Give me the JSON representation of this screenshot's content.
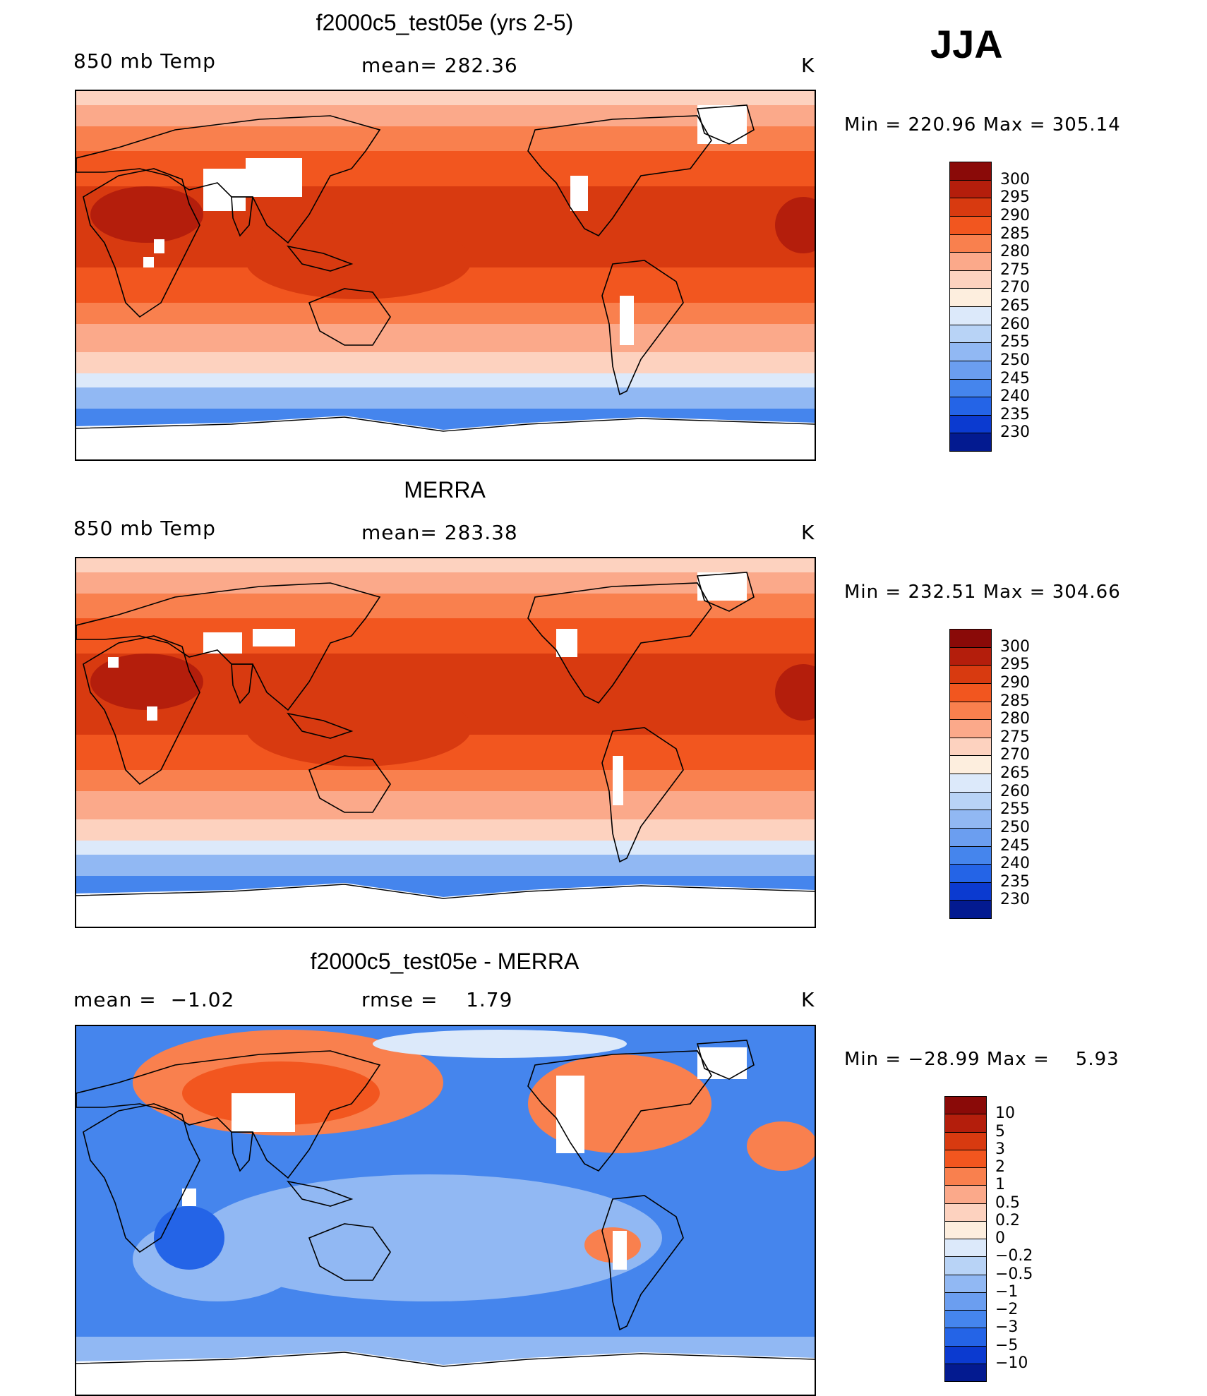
{
  "season": "JJA",
  "units": "K",
  "panels": [
    {
      "title": "f2000c5_test05e (yrs 2-5)",
      "left_label": "850 mb Temp",
      "mid_label": "mean= 282.36",
      "units": "K",
      "minmax": "Min = 220.96 Max = 305.14",
      "colorbar_labels": [
        "300",
        "295",
        "290",
        "285",
        "280",
        "275",
        "270",
        "265",
        "260",
        "255",
        "250",
        "245",
        "240",
        "235",
        "230"
      ],
      "colorbar_colors": [
        "#8a0a08",
        "#b41e0c",
        "#d83a10",
        "#f2561f",
        "#f9804e",
        "#fba98a",
        "#fdd2bf",
        "#fdeede",
        "#dce9fa",
        "#b8d3f6",
        "#91b8f3",
        "#6b9ef0",
        "#4585ed",
        "#2464e7",
        "#0b3ad0",
        "#031a90"
      ],
      "colorbar_header": "",
      "map_kind": "absolute",
      "map_colors": {
        "hot": "#b41e0c",
        "warm": "#d83a10",
        "mid": "#f2561f",
        "mild": "#f9804e",
        "cool": "#fba98a",
        "cold": "#fdd2bf",
        "polar1": "#dce9fa",
        "polar2": "#91b8f3",
        "polar3": "#4585ed",
        "mask": "#ffffff"
      }
    },
    {
      "title": "MERRA",
      "left_label": "850 mb Temp",
      "mid_label": "mean= 283.38",
      "units": "K",
      "minmax": "Min = 232.51 Max = 304.66",
      "colorbar_labels": [
        "300",
        "295",
        "290",
        "285",
        "280",
        "275",
        "270",
        "265",
        "260",
        "255",
        "250",
        "245",
        "240",
        "235",
        "230"
      ],
      "colorbar_colors": [
        "#8a0a08",
        "#b41e0c",
        "#d83a10",
        "#f2561f",
        "#f9804e",
        "#fba98a",
        "#fdd2bf",
        "#fdeede",
        "#dce9fa",
        "#b8d3f6",
        "#91b8f3",
        "#6b9ef0",
        "#4585ed",
        "#2464e7",
        "#0b3ad0",
        "#031a90"
      ],
      "colorbar_header": "",
      "map_kind": "absolute",
      "map_colors": {
        "hot": "#b41e0c",
        "warm": "#d83a10",
        "mid": "#f2561f",
        "mild": "#f9804e",
        "cool": "#fba98a",
        "cold": "#fdd2bf",
        "polar1": "#dce9fa",
        "polar2": "#91b8f3",
        "polar3": "#4585ed",
        "mask": "#ffffff"
      }
    },
    {
      "title": "f2000c5_test05e - MERRA",
      "left_label": "mean =  −1.02",
      "mid_label": "rmse =    1.79",
      "units": "K",
      "minmax": "Min = −28.99 Max =    5.93",
      "colorbar_labels": [
        "10",
        "5",
        "3",
        "2",
        "1",
        "0.5",
        "0.2",
        "0",
        "−0.2",
        "−0.5",
        "−1",
        "−2",
        "−3",
        "−5",
        "−10"
      ],
      "colorbar_colors": [
        "#8a0a08",
        "#b41e0c",
        "#d83a10",
        "#f2561f",
        "#f9804e",
        "#fba98a",
        "#fdd2bf",
        "#fdeede",
        "#dce9fa",
        "#b8d3f6",
        "#91b8f3",
        "#6b9ef0",
        "#4585ed",
        "#2464e7",
        "#0b3ad0",
        "#031a90"
      ],
      "colorbar_header": "",
      "map_kind": "difference",
      "map_colors": {
        "pos": "#f9804e",
        "pos2": "#f2561f",
        "neg1": "#91b8f3",
        "neg2": "#4585ed",
        "neg3": "#2464e7",
        "light": "#dce9fa",
        "mask": "#ffffff"
      }
    }
  ]
}
